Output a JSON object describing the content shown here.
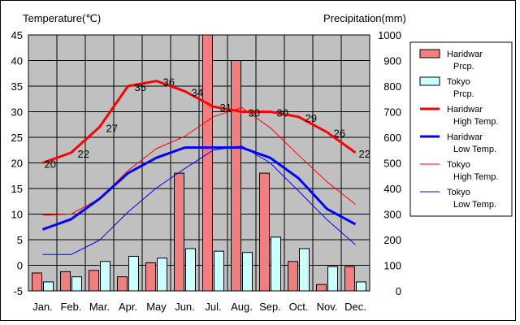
{
  "chart_data": {
    "type": "bar+line",
    "left_axis_title": "Temperature(℃)",
    "right_axis_title": "Precipitation(mm)",
    "left_ticks": [
      45,
      40,
      35,
      30,
      25,
      20,
      15,
      10,
      5,
      0,
      -5
    ],
    "right_ticks": [
      1000,
      900,
      800,
      700,
      600,
      500,
      400,
      300,
      200,
      100,
      0
    ],
    "left_ylim": [
      -5,
      45
    ],
    "right_ylim": [
      0,
      1000
    ],
    "categories": [
      "Jan.",
      "Feb.",
      "Mar.",
      "Apr.",
      "May",
      "Jun.",
      "Jul.",
      "Aug.",
      "Sep.",
      "Oct.",
      "Nov.",
      "Dec."
    ],
    "series": [
      {
        "name": "Haridwar Prcp.",
        "legend_lines": [
          "Haridwar",
          "Prcp."
        ],
        "type": "bar",
        "axis": "right",
        "color": "#f08080",
        "values": [
          70,
          75,
          80,
          55,
          110,
          460,
          1000,
          900,
          460,
          115,
          25,
          95
        ]
      },
      {
        "name": "Tokyo Prcp.",
        "legend_lines": [
          "Tokyo",
          "Prcp."
        ],
        "type": "bar",
        "axis": "right",
        "color": "#ccffff",
        "values": [
          35,
          55,
          115,
          135,
          128,
          165,
          155,
          150,
          210,
          165,
          95,
          35
        ]
      },
      {
        "name": "Haridwar High Temp.",
        "legend_lines": [
          "Haridwar",
          "High Temp."
        ],
        "type": "line",
        "axis": "left",
        "color": "#ff0000",
        "width": 3,
        "values": [
          20,
          22,
          27,
          35,
          36,
          34,
          31,
          30,
          30,
          29,
          26,
          22
        ],
        "labels": [
          "20",
          "22",
          "27",
          "35",
          "36",
          "34",
          "31",
          "30",
          "30",
          "29",
          "26",
          "22"
        ]
      },
      {
        "name": "Haridwar Low Temp.",
        "legend_lines": [
          "Haridwar",
          "Low Temp."
        ],
        "type": "line",
        "axis": "left",
        "color": "#0000ff",
        "width": 3,
        "values": [
          7,
          9,
          13,
          18,
          21,
          23,
          23,
          23,
          21,
          17,
          11,
          8
        ]
      },
      {
        "name": "Tokyo High Temp.",
        "legend_lines": [
          "Tokyo",
          "High Temp."
        ],
        "type": "line",
        "axis": "left",
        "color": "#ff0000",
        "width": 1,
        "values": [
          9.8,
          10,
          13,
          18.5,
          22.8,
          25.2,
          29,
          30.8,
          26.9,
          21.5,
          16.3,
          11.9
        ]
      },
      {
        "name": "Tokyo Low Temp.",
        "legend_lines": [
          "Tokyo",
          "Low Temp."
        ],
        "type": "line",
        "axis": "left",
        "color": "#0000ff",
        "width": 1,
        "values": [
          2.1,
          2.1,
          4.9,
          10.4,
          15.1,
          18.9,
          22.5,
          23.3,
          20,
          14.5,
          8.9,
          4
        ]
      }
    ],
    "plot_background": "#c0c0c0",
    "grid": true,
    "legend_position": "right"
  }
}
